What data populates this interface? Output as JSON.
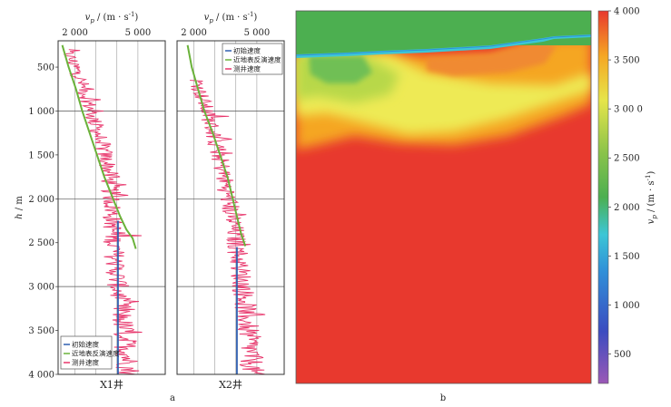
{
  "chart_data": [
    {
      "type": "line",
      "panel": "a",
      "title": "X1井",
      "xlabel": "v_p / (m · s^-1)",
      "xlabel_parts": {
        "v": "v",
        "sub": "p",
        "unit": " / (m · s",
        "sup": "-1",
        "close": ")"
      },
      "ylabel": "h / m",
      "ylabel_parts": {
        "h": "h",
        "unit": " / m"
      },
      "xlim": [
        1200,
        6300
      ],
      "ylim": [
        200,
        4000
      ],
      "xticks": [
        2000,
        5000
      ],
      "xtick_labels": [
        "2 000",
        "5 000"
      ],
      "yticks": [
        500,
        1000,
        1500,
        2000,
        2500,
        3000,
        3500,
        4000
      ],
      "ytick_labels": [
        "500",
        "1 000",
        "1 500",
        "2 000",
        "2 500",
        "3 000",
        "3 500",
        "4 000"
      ],
      "grid": true,
      "legend_position": "bottom-left",
      "series": [
        {
          "name": "初始速度",
          "color": "#2f5fb0",
          "x": [
            4050,
            4050
          ],
          "y": [
            2250,
            4000
          ]
        },
        {
          "name": "近地表反演速度",
          "color": "#6ab23a",
          "x": [
            1400,
            1700,
            2050,
            2350,
            2700,
            3050,
            3400,
            3650,
            3900,
            4150,
            4450,
            4750,
            4900
          ],
          "y": [
            250,
            500,
            750,
            1000,
            1250,
            1500,
            1750,
            1900,
            2050,
            2200,
            2350,
            2450,
            2570
          ]
        },
        {
          "name": "测井速度",
          "color": "#e8356b",
          "trend_x": [
            1600,
            2100,
            2500,
            2900,
            3300,
            3600,
            3750,
            3800,
            3900,
            4050,
            4200,
            4450,
            4600
          ],
          "trend_y": [
            300,
            550,
            800,
            1100,
            1400,
            1650,
            2000,
            2300,
            2700,
            3000,
            3300,
            3700,
            4000
          ]
        }
      ]
    },
    {
      "type": "line",
      "panel": "a",
      "title": "X2井",
      "xlabel": "v_p / (m · s^-1)",
      "xlim": [
        1200,
        6300
      ],
      "ylim": [
        200,
        4000
      ],
      "xticks": [
        2000,
        5000
      ],
      "xtick_labels": [
        "2 000",
        "5 000"
      ],
      "grid": true,
      "legend_position": "top-right",
      "series": [
        {
          "name": "初始速度",
          "color": "#2f5fb0",
          "x": [
            4050,
            4050
          ],
          "y": [
            2550,
            4000
          ]
        },
        {
          "name": "近地表反演速度",
          "color": "#6ab23a",
          "x": [
            1700,
            1900,
            2200,
            2500,
            2900,
            3250,
            3600,
            3850,
            4050,
            4250,
            4450
          ],
          "y": [
            250,
            500,
            750,
            1000,
            1250,
            1500,
            1750,
            2000,
            2200,
            2400,
            2540
          ]
        },
        {
          "name": "测井速度",
          "color": "#e8356b",
          "trend_x": [
            2150,
            2400,
            2750,
            3100,
            3400,
            3650,
            3900,
            4150,
            4400,
            4600,
            4800
          ],
          "trend_y": [
            650,
            850,
            1100,
            1400,
            1700,
            2000,
            2300,
            2700,
            3100,
            3500,
            4000
          ]
        }
      ]
    },
    {
      "type": "heatmap",
      "panel": "b",
      "colorbar_label": "v_p / (m · s^-1)",
      "colorbar_range": [
        200,
        4000
      ],
      "colorbar_ticks": [
        500,
        1000,
        1500,
        2000,
        2500,
        3000,
        3500,
        4000
      ],
      "colorbar_tick_labels": [
        "500",
        "1 000",
        "1 500",
        "2 000",
        "2 500",
        "3 00 0",
        "3 500",
        "4 000"
      ],
      "colormap": [
        "#9b59b6",
        "#3b4cc0",
        "#2f8fd8",
        "#3cc6d6",
        "#4caf50",
        "#8bc34a",
        "#e6e54a",
        "#f5a623",
        "#e8392e"
      ]
    }
  ],
  "panel_labels": {
    "a": "a",
    "b": "b"
  },
  "colors": {
    "grid": "#888888",
    "frame": "#333333",
    "background": "#ffffff"
  }
}
